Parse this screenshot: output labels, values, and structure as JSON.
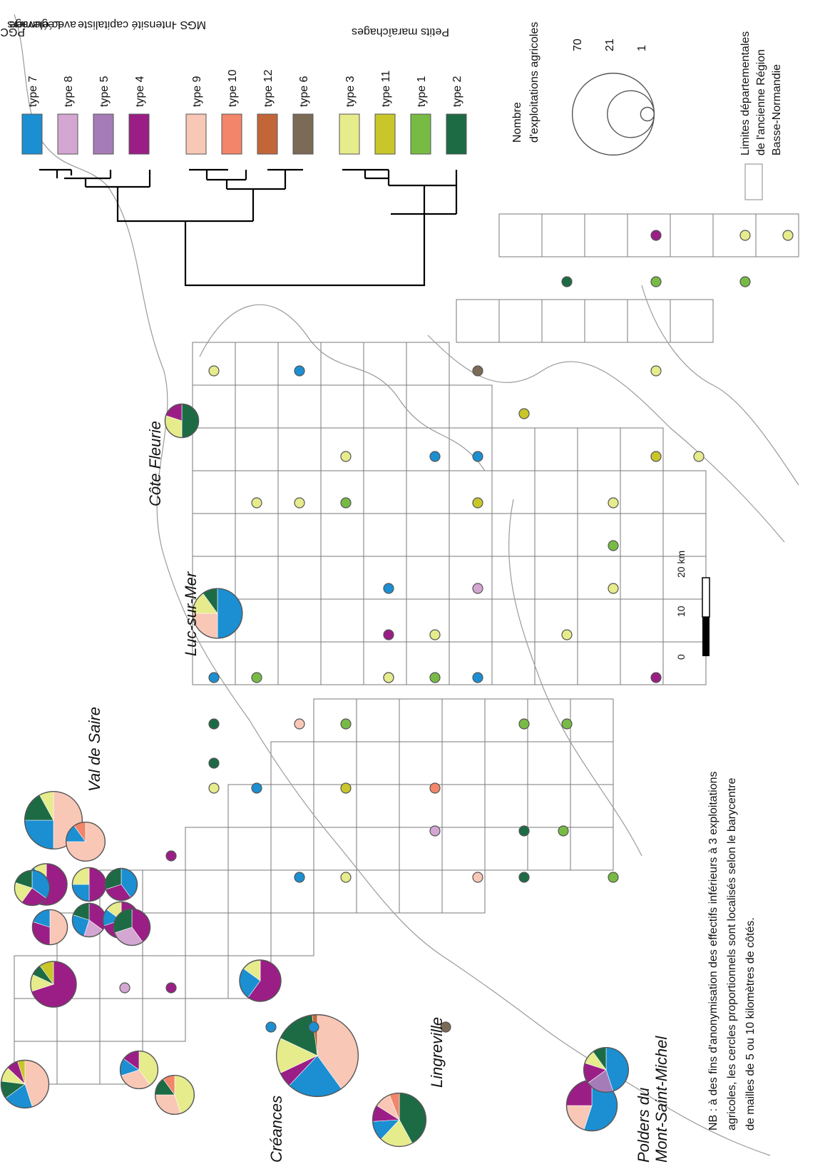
{
  "legend": {
    "groups": [
      {
        "label_lines": [
          "PGC"
        ]
      },
      {
        "label_lines": [
          "Légumiers",
          "avec élevage"
        ]
      },
      {
        "label_lines": [
          "Intensité capitaliste",
          "-",
          "MGS -"
        ]
      },
      {
        "label_lines": [
          "Petits maraîchages"
        ]
      }
    ],
    "types": [
      {
        "name": "type 7",
        "color": "#1b8fd2"
      },
      {
        "name": "type 8",
        "color": "#d4a6d2"
      },
      {
        "name": "type 5",
        "color": "#a67cb8"
      },
      {
        "name": "type 4",
        "color": "#9b1e86"
      },
      {
        "name": "type 9",
        "color": "#f9c7b6"
      },
      {
        "name": "type 10",
        "color": "#f2856a"
      },
      {
        "name": "type 12",
        "color": "#c2663a"
      },
      {
        "name": "type 6",
        "color": "#7b6a55"
      },
      {
        "name": "type 3",
        "color": "#e6eb8c"
      },
      {
        "name": "type 11",
        "color": "#c9c62a"
      },
      {
        "name": "type 1",
        "color": "#77bb45"
      },
      {
        "name": "type 2",
        "color": "#1d6b45"
      }
    ],
    "size_title_lines": [
      "Nombre",
      "d'exploitations agricoles"
    ],
    "size_values": [
      {
        "label": "70",
        "count": 70
      },
      {
        "label": "21",
        "count": 21
      },
      {
        "label": "1",
        "count": 1
      }
    ],
    "boundary_lines": [
      "Limites départementales",
      "de l'ancienne Région",
      "Basse-Normandie"
    ],
    "scale": {
      "ticks": [
        "0",
        "10",
        "20 km"
      ]
    }
  },
  "place_names": {
    "val_de_saire": "Val de Saire",
    "cote_fleurie": "Côte Fleurie",
    "luc_sur_mer": "Luc-sur-Mer",
    "creances": "Créances",
    "lingreville": "Lingreville",
    "polders_line1": "Polders du",
    "polders_line2": "Mont-Saint-Michel"
  },
  "note_lines": [
    "NB : à des fins d'anonymisation des effectifs inférieurs à 3 exploitations",
    "agricoles, les cercles proportionnels sont localisés selon le barycentre",
    "de mailles de 5 ou 10 kilomètres de côtés."
  ],
  "pies": [
    {
      "id": "creances",
      "count": 70,
      "parts": [
        [
          "type 9",
          0.4
        ],
        [
          "type 7",
          0.22
        ],
        [
          "type 4",
          0.06
        ],
        [
          "type 3",
          0.14
        ],
        [
          "type 2",
          0.16
        ],
        [
          "type 12",
          0.02
        ]
      ]
    },
    {
      "id": "val1",
      "count": 33,
      "parts": [
        [
          "type 9",
          0.5
        ],
        [
          "type 7",
          0.25
        ],
        [
          "type 2",
          0.17
        ],
        [
          "type 3",
          0.08
        ]
      ]
    },
    {
      "id": "val2",
      "count": 22,
      "parts": [
        [
          "type 9",
          0.45
        ],
        [
          "type 7",
          0.2
        ],
        [
          "type 2",
          0.12
        ],
        [
          "type 3",
          0.1
        ],
        [
          "type 4",
          0.08
        ],
        [
          "type 11",
          0.05
        ]
      ]
    },
    {
      "id": "val3",
      "count": 14,
      "parts": [
        [
          "type 9",
          0.75
        ],
        [
          "type 7",
          0.15
        ],
        [
          "type 10",
          0.1
        ]
      ]
    },
    {
      "id": "val4",
      "count": 16,
      "parts": [
        [
          "type 4",
          0.6
        ],
        [
          "type 9",
          0.2
        ],
        [
          "type 7",
          0.1
        ],
        [
          "type 3",
          0.1
        ]
      ]
    },
    {
      "id": "val5",
      "count": 20,
      "parts": [
        [
          "type 4",
          0.7
        ],
        [
          "type 3",
          0.12
        ],
        [
          "type 2",
          0.08
        ],
        [
          "type 11",
          0.1
        ]
      ]
    },
    {
      "id": "val6",
      "count": 11,
      "parts": [
        [
          "type 7",
          0.35
        ],
        [
          "type 4",
          0.25
        ],
        [
          "type 3",
          0.2
        ],
        [
          "type 2",
          0.2
        ]
      ]
    },
    {
      "id": "val7",
      "count": 11,
      "parts": [
        [
          "type 9",
          0.5
        ],
        [
          "type 4",
          0.3
        ],
        [
          "type 7",
          0.2
        ]
      ]
    },
    {
      "id": "val8",
      "count": 10,
      "parts": [
        [
          "type 4",
          0.35
        ],
        [
          "type 8",
          0.2
        ],
        [
          "type 7",
          0.25
        ],
        [
          "type 2",
          0.2
        ]
      ]
    },
    {
      "id": "val9",
      "count": 10,
      "parts": [
        [
          "type 4",
          0.5
        ],
        [
          "type 7",
          0.25
        ],
        [
          "type 3",
          0.25
        ]
      ]
    },
    {
      "id": "val10",
      "count": 9,
      "parts": [
        [
          "type 7",
          0.4
        ],
        [
          "type 4",
          0.3
        ],
        [
          "type 2",
          0.3
        ]
      ]
    },
    {
      "id": "val11",
      "count": 12,
      "parts": [
        [
          "type 4",
          0.7
        ],
        [
          "type 7",
          0.15
        ],
        [
          "type 3",
          0.15
        ]
      ]
    },
    {
      "id": "val12",
      "count": 12,
      "parts": [
        [
          "type 4",
          0.4
        ],
        [
          "type 8",
          0.3
        ],
        [
          "type 2",
          0.3
        ]
      ]
    },
    {
      "id": "luc",
      "count": 24,
      "parts": [
        [
          "type 7",
          0.5
        ],
        [
          "type 9",
          0.25
        ],
        [
          "type 3",
          0.15
        ],
        [
          "type 2",
          0.1
        ]
      ]
    },
    {
      "id": "lingreville",
      "count": 28,
      "parts": [
        [
          "type 2",
          0.42
        ],
        [
          "type 3",
          0.2
        ],
        [
          "type 7",
          0.12
        ],
        [
          "type 4",
          0.1
        ],
        [
          "type 9",
          0.1
        ],
        [
          "type 10",
          0.06
        ]
      ]
    },
    {
      "id": "polders",
      "count": 25,
      "parts": [
        [
          "type 7",
          0.55
        ],
        [
          "type 9",
          0.2
        ],
        [
          "type 4",
          0.25
        ]
      ]
    },
    {
      "id": "polders2",
      "count": 19,
      "parts": [
        [
          "type 7",
          0.45
        ],
        [
          "type 5",
          0.2
        ],
        [
          "type 4",
          0.15
        ],
        [
          "type 3",
          0.1
        ],
        [
          "type 2",
          0.1
        ]
      ]
    },
    {
      "id": "sw1",
      "count": 16,
      "parts": [
        [
          "type 4",
          0.6
        ],
        [
          "type 7",
          0.25
        ],
        [
          "type 3",
          0.15
        ]
      ]
    },
    {
      "id": "sw2",
      "count": 14,
      "parts": [
        [
          "type 3",
          0.45
        ],
        [
          "type 9",
          0.3
        ],
        [
          "type 2",
          0.15
        ],
        [
          "type 10",
          0.1
        ]
      ]
    },
    {
      "id": "sw3",
      "count": 13,
      "parts": [
        [
          "type 3",
          0.4
        ],
        [
          "type 9",
          0.3
        ],
        [
          "type 7",
          0.15
        ],
        [
          "type 4",
          0.15
        ]
      ]
    },
    {
      "id": "cote",
      "count": 10,
      "parts": [
        [
          "type 2",
          0.5
        ],
        [
          "type 3",
          0.3
        ],
        [
          "type 4",
          0.2
        ]
      ]
    }
  ]
}
